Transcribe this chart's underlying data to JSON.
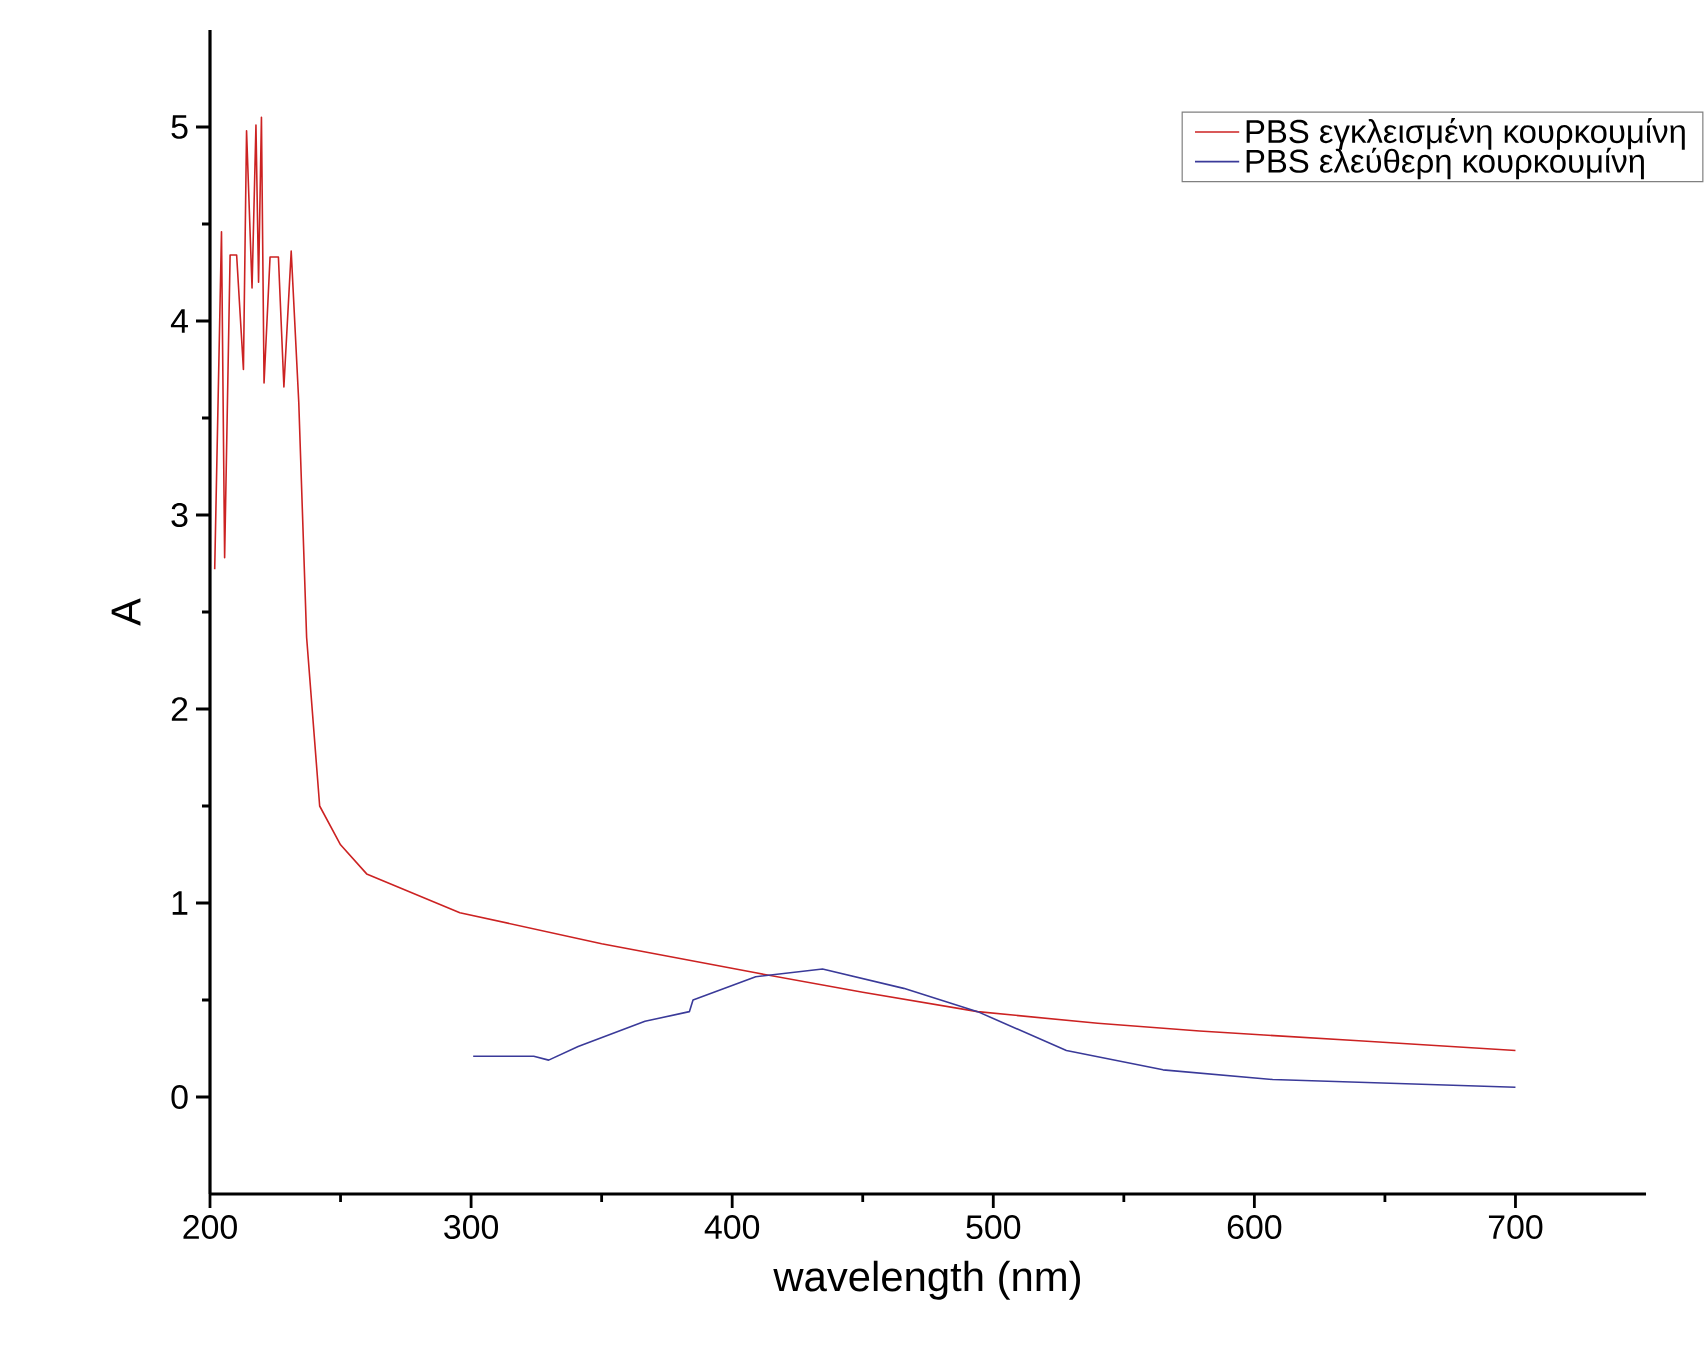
{
  "chart_data": {
    "type": "line",
    "xlabel": "wavelength (nm)",
    "ylabel": "A",
    "xlim": [
      200,
      750
    ],
    "ylim": [
      -0.5,
      5.5
    ],
    "xticks": [
      200,
      300,
      400,
      500,
      600,
      700
    ],
    "yticks": [
      0,
      1,
      2,
      3,
      4,
      5
    ],
    "grid": false,
    "legend": "top right",
    "marker": "none",
    "line_style": "solid",
    "series": [
      {
        "name": "PBS εγκλεισμένη κουρκουμίνη",
        "color": "#cc2222",
        "x": [
          201.8,
          204.4,
          205.6,
          207.7,
          210.2,
          212.8,
          214.0,
          216.1,
          217.6,
          218.6,
          219.7,
          220.7,
          223.0,
          226.2,
          228.3,
          231.1,
          234.0,
          237.0,
          242.0,
          250.0,
          260.0,
          295.7,
          350.0,
          409.0,
          450.0,
          494.0,
          540.0,
          579.0,
          640.0,
          700.0
        ],
        "values": [
          2.72,
          4.46,
          2.78,
          4.34,
          4.34,
          3.75,
          4.98,
          4.17,
          5.01,
          4.2,
          5.05,
          3.68,
          4.33,
          4.33,
          3.66,
          4.36,
          3.58,
          2.37,
          1.5,
          1.3,
          1.15,
          0.95,
          0.79,
          0.64,
          0.54,
          0.44,
          0.38,
          0.34,
          0.29,
          0.24
        ]
      },
      {
        "name": "PBS ελεύθερη κουρκουμίνη",
        "color": "#3a3a99",
        "x": [
          300.8,
          324.0,
          329.7,
          341.0,
          366.6,
          383.6,
          385.0,
          409.0,
          434.6,
          465.7,
          494.0,
          528.0,
          565.0,
          607.0,
          700.0
        ],
        "values": [
          0.21,
          0.21,
          0.19,
          0.26,
          0.39,
          0.44,
          0.5,
          0.62,
          0.66,
          0.56,
          0.44,
          0.24,
          0.14,
          0.09,
          0.05
        ]
      }
    ]
  }
}
